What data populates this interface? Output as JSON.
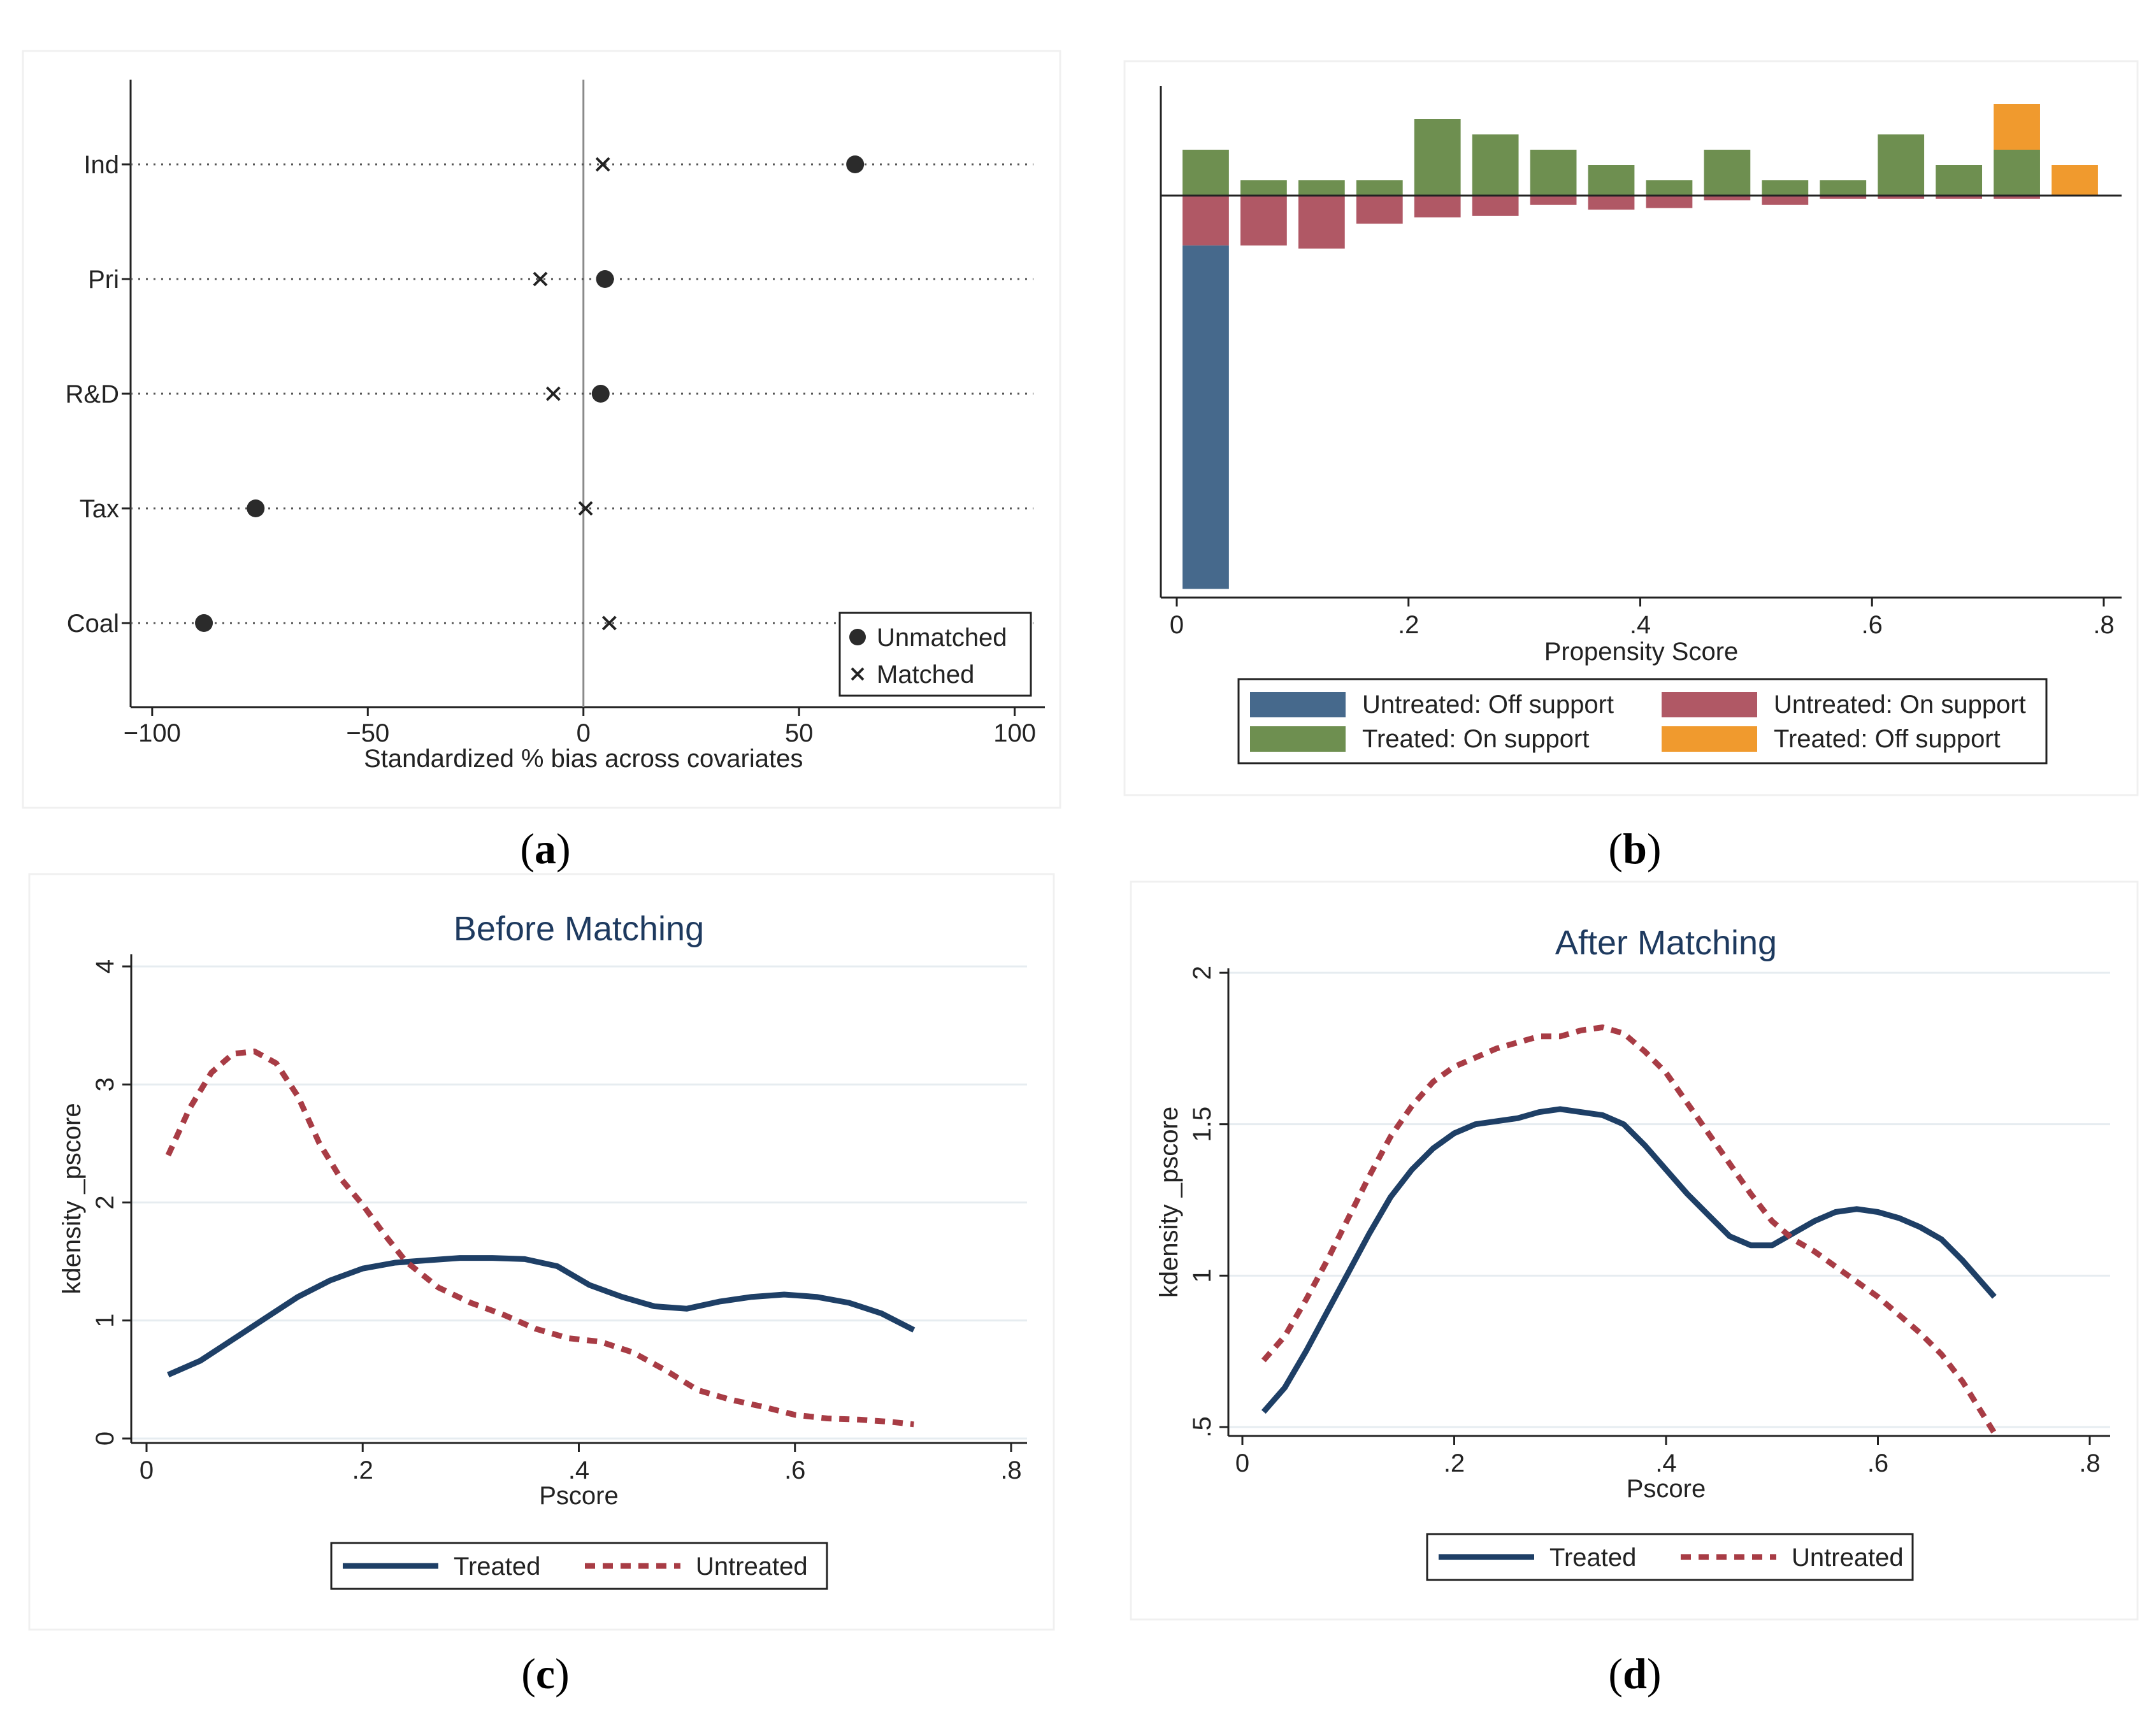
{
  "panels": {
    "a": {
      "caption_letter": "a"
    },
    "b": {
      "caption_letter": "b"
    },
    "c": {
      "caption_letter": "c"
    },
    "d": {
      "caption_letter": "d"
    }
  },
  "colors": {
    "untreated_off": "#46698c",
    "untreated_on": "#b05865",
    "treated_on": "#6e8f50",
    "treated_off": "#f09a2e",
    "treated_line": "#1e3f66",
    "untreated_line": "#a83c45"
  },
  "chart_data": [
    {
      "id": "a",
      "type": "scatter",
      "title": "",
      "xlabel": "Standardized % bias across covariates",
      "ylabel": "",
      "xlim": [
        -105,
        107
      ],
      "xticks": [
        -100,
        -50,
        0,
        50,
        100
      ],
      "xtick_labels": [
        "−100",
        "−50",
        "0",
        "50",
        "100"
      ],
      "categories": [
        "Ind",
        "Pri",
        "R&D",
        "Tax",
        "Coal"
      ],
      "series": [
        {
          "name": "Unmatched",
          "marker": "dot",
          "values": [
            63,
            5,
            4,
            -76,
            -88
          ]
        },
        {
          "name": "Matched",
          "marker": "x",
          "values": [
            4.5,
            -10,
            -7,
            0.5,
            6
          ]
        }
      ],
      "reference_line": 0,
      "legend": "bottom-right"
    },
    {
      "id": "b",
      "type": "bar",
      "title": "",
      "xlabel": "Propensity Score",
      "ylabel": "",
      "xlim": [
        -0.01,
        0.81
      ],
      "xticks": [
        0,
        0.2,
        0.4,
        0.6,
        0.8
      ],
      "xtick_labels": [
        "0",
        ".2",
        ".4",
        ".6",
        ".8"
      ],
      "bin_starts": [
        0.005,
        0.055,
        0.105,
        0.155,
        0.205,
        0.255,
        0.305,
        0.355,
        0.405,
        0.455,
        0.505,
        0.555,
        0.605,
        0.655,
        0.705,
        0.755
      ],
      "bin_width": 0.04,
      "above": {
        "treated_on_support": [
          3,
          1,
          1,
          1,
          5,
          4,
          3,
          2,
          1,
          3,
          1,
          1,
          4,
          2,
          3,
          0
        ],
        "treated_off_support": [
          0,
          0,
          0,
          0,
          0,
          0,
          0,
          0,
          0,
          0,
          0,
          0,
          0,
          0,
          3,
          2
        ]
      },
      "below": {
        "untreated_on_support": [
          3.2,
          3.2,
          3.4,
          1.8,
          1.4,
          1.3,
          0.6,
          0.9,
          0.8,
          0.3,
          0.6,
          0.2,
          0.2,
          0.2,
          0.2,
          0
        ],
        "untreated_off_support": [
          22,
          0,
          0,
          0,
          0,
          0,
          0,
          0,
          0,
          0,
          0,
          0,
          0,
          0,
          0,
          0
        ]
      },
      "series": [
        {
          "name": "Untreated: Off support"
        },
        {
          "name": "Untreated: On support"
        },
        {
          "name": "Treated: On support"
        },
        {
          "name": "Treated: Off support"
        }
      ],
      "legend": "bottom"
    },
    {
      "id": "c",
      "type": "line",
      "title": "Before Matching",
      "xlabel": "Pscore",
      "ylabel": "kdensity _pscore",
      "xlim": [
        0,
        0.8
      ],
      "ylim": [
        0,
        4
      ],
      "xticks": [
        0,
        0.2,
        0.4,
        0.6,
        0.8
      ],
      "xtick_labels": [
        "0",
        ".2",
        ".4",
        ".6",
        ".8"
      ],
      "yticks": [
        0,
        1,
        2,
        3,
        4
      ],
      "ytick_labels": [
        "0",
        "1",
        "2",
        "3",
        "4"
      ],
      "series": [
        {
          "name": "Treated",
          "x": [
            0.02,
            0.05,
            0.08,
            0.11,
            0.14,
            0.17,
            0.2,
            0.23,
            0.26,
            0.29,
            0.32,
            0.35,
            0.38,
            0.41,
            0.44,
            0.47,
            0.5,
            0.53,
            0.56,
            0.59,
            0.62,
            0.65,
            0.68,
            0.71
          ],
          "y": [
            0.54,
            0.66,
            0.84,
            1.02,
            1.2,
            1.34,
            1.44,
            1.49,
            1.51,
            1.53,
            1.53,
            1.52,
            1.46,
            1.3,
            1.2,
            1.12,
            1.1,
            1.16,
            1.2,
            1.22,
            1.2,
            1.15,
            1.06,
            0.92
          ]
        },
        {
          "name": "Untreated",
          "x": [
            0.02,
            0.04,
            0.06,
            0.08,
            0.1,
            0.12,
            0.14,
            0.16,
            0.18,
            0.2,
            0.22,
            0.24,
            0.27,
            0.3,
            0.33,
            0.36,
            0.39,
            0.42,
            0.45,
            0.48,
            0.51,
            0.54,
            0.57,
            0.6,
            0.63,
            0.66,
            0.69,
            0.71
          ],
          "y": [
            2.4,
            2.8,
            3.1,
            3.26,
            3.28,
            3.18,
            2.9,
            2.5,
            2.2,
            1.98,
            1.73,
            1.5,
            1.28,
            1.15,
            1.05,
            0.93,
            0.85,
            0.82,
            0.73,
            0.58,
            0.41,
            0.33,
            0.27,
            0.2,
            0.17,
            0.16,
            0.14,
            0.12
          ]
        }
      ],
      "legend": "bottom"
    },
    {
      "id": "d",
      "type": "line",
      "title": "After Matching",
      "xlabel": "Pscore",
      "ylabel": "kdensity _pscore",
      "xlim": [
        0,
        0.8
      ],
      "ylim": [
        0.5,
        2
      ],
      "xticks": [
        0,
        0.2,
        0.4,
        0.6,
        0.8
      ],
      "xtick_labels": [
        "0",
        ".2",
        ".4",
        ".6",
        ".8"
      ],
      "yticks": [
        0.5,
        1,
        1.5,
        2
      ],
      "ytick_labels": [
        ".5",
        "1",
        "1.5",
        "2"
      ],
      "series": [
        {
          "name": "Treated",
          "x": [
            0.02,
            0.04,
            0.06,
            0.08,
            0.1,
            0.12,
            0.14,
            0.16,
            0.18,
            0.2,
            0.22,
            0.24,
            0.26,
            0.28,
            0.3,
            0.32,
            0.34,
            0.36,
            0.38,
            0.4,
            0.42,
            0.44,
            0.46,
            0.48,
            0.5,
            0.52,
            0.54,
            0.56,
            0.58,
            0.6,
            0.62,
            0.64,
            0.66,
            0.68,
            0.71
          ],
          "y": [
            0.55,
            0.63,
            0.75,
            0.88,
            1.01,
            1.14,
            1.26,
            1.35,
            1.42,
            1.47,
            1.5,
            1.51,
            1.52,
            1.54,
            1.55,
            1.54,
            1.53,
            1.5,
            1.43,
            1.35,
            1.27,
            1.2,
            1.13,
            1.1,
            1.1,
            1.14,
            1.18,
            1.21,
            1.22,
            1.21,
            1.19,
            1.16,
            1.12,
            1.05,
            0.93
          ]
        },
        {
          "name": "Untreated",
          "x": [
            0.02,
            0.04,
            0.06,
            0.08,
            0.1,
            0.12,
            0.14,
            0.16,
            0.18,
            0.2,
            0.22,
            0.24,
            0.26,
            0.28,
            0.3,
            0.32,
            0.34,
            0.36,
            0.38,
            0.4,
            0.42,
            0.44,
            0.46,
            0.48,
            0.5,
            0.52,
            0.54,
            0.56,
            0.58,
            0.6,
            0.62,
            0.64,
            0.66,
            0.68,
            0.71
          ],
          "y": [
            0.72,
            0.8,
            0.92,
            1.05,
            1.19,
            1.33,
            1.46,
            1.56,
            1.64,
            1.69,
            1.72,
            1.75,
            1.77,
            1.79,
            1.79,
            1.81,
            1.82,
            1.8,
            1.74,
            1.67,
            1.57,
            1.47,
            1.37,
            1.27,
            1.18,
            1.12,
            1.08,
            1.03,
            0.98,
            0.93,
            0.87,
            0.81,
            0.74,
            0.65,
            0.48
          ]
        }
      ],
      "legend": "bottom"
    }
  ]
}
